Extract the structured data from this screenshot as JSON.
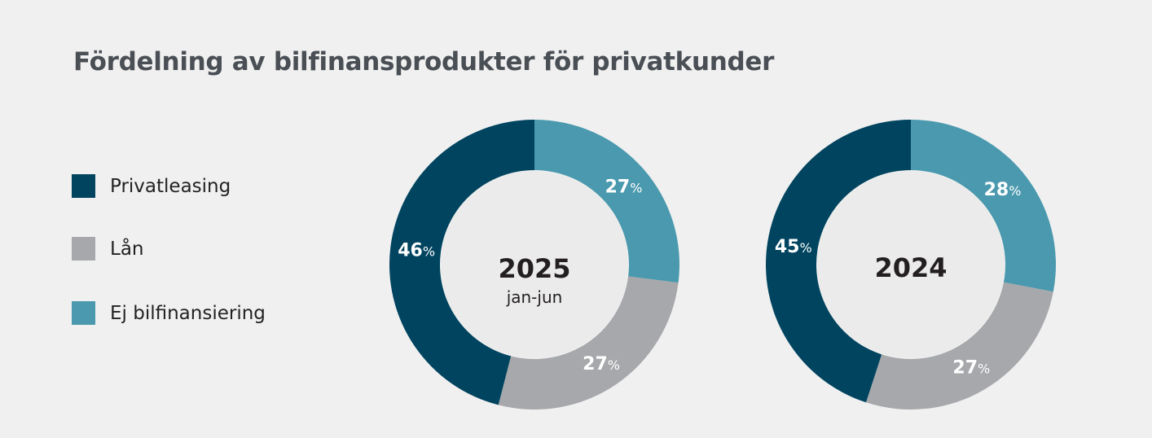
{
  "chart_data": [
    {
      "type": "pie",
      "donut": true,
      "title": "Fördelning av bilfinansprodukter för privatkunder",
      "center_label": "2025",
      "center_sublabel": "jan-jun",
      "categories": [
        "Ej bilfinansiering",
        "Lån",
        "Privatleasing"
      ],
      "values": [
        27,
        27,
        46
      ],
      "unit": "%"
    },
    {
      "type": "pie",
      "donut": true,
      "title": "Fördelning av bilfinansprodukter för privatkunder",
      "center_label": "2024",
      "center_sublabel": "",
      "categories": [
        "Ej bilfinansiering",
        "Lån",
        "Privatleasing"
      ],
      "values": [
        28,
        27,
        45
      ],
      "unit": "%"
    }
  ],
  "title": "Fördelning av bilfinansprodukter för privatkunder",
  "legend": [
    {
      "label": "Privatleasing",
      "color": "#00445f"
    },
    {
      "label": "Lån",
      "color": "#a7a8ab"
    },
    {
      "label": "Ej bilfinansiering",
      "color": "#4a99ae"
    }
  ],
  "colors": {
    "Ej bilfinansiering": "#4a99ae",
    "Lån": "#a7a8ab",
    "Privatleasing": "#00445f",
    "inner": "#ebebeb"
  }
}
